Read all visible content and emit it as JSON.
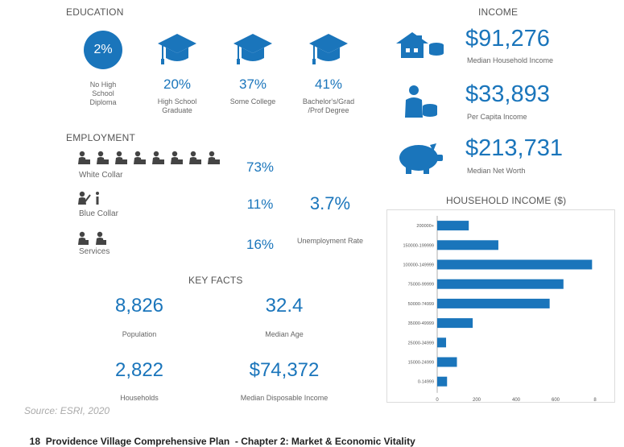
{
  "education": {
    "title": "EDUCATION",
    "items": [
      {
        "value": "2%",
        "label": "No High School Diploma"
      },
      {
        "value": "20%",
        "label": "High School Graduate"
      },
      {
        "value": "37%",
        "label": "Some College"
      },
      {
        "value": "41%",
        "label": "Bachelor's/Grad /Prof Degree"
      }
    ]
  },
  "employment": {
    "title": "EMPLOYMENT",
    "white_collar": {
      "label": "White Collar",
      "value": "73%"
    },
    "blue_collar": {
      "label": "Blue Collar",
      "value": "11%"
    },
    "services": {
      "label": "Services",
      "value": "16%"
    },
    "unemployment": {
      "value": "3.7%",
      "label": "Unemployment Rate"
    }
  },
  "key_facts": {
    "title": "KEY FACTS",
    "population": {
      "value": "8,826",
      "label": "Population"
    },
    "median_age": {
      "value": "32.4",
      "label": "Median Age"
    },
    "households": {
      "value": "2,822",
      "label": "Households"
    },
    "disposable_income": {
      "value": "$74,372",
      "label": "Median Disposable Income"
    }
  },
  "income": {
    "title": "INCOME",
    "median_household": {
      "value": "$91,276",
      "label": "Median Household Income"
    },
    "per_capita": {
      "value": "$33,893",
      "label": "Per Capita Income"
    },
    "net_worth": {
      "value": "$213,731",
      "label": "Median Net Worth"
    }
  },
  "source": "Source: ESRI, 2020",
  "footer": {
    "page": "18",
    "text": "Providence Village Comprehensive Plan  - Chapter 2: Market & Economic Vitality"
  },
  "colors": {
    "accent": "#1a75bb",
    "text": "#555555"
  },
  "chart_data": {
    "type": "bar",
    "orientation": "horizontal",
    "title": "HOUSEHOLD INCOME ($)",
    "categories": [
      "200000+",
      "150000-199999",
      "100000-149999",
      "75000-99999",
      "50000-74999",
      "35000-49999",
      "25000-34999",
      "15000-24999",
      "0-14999"
    ],
    "values": [
      160,
      310,
      785,
      640,
      570,
      180,
      45,
      100,
      50
    ],
    "xticks": [
      "0",
      "200",
      "400",
      "600",
      "8"
    ],
    "xlim": [
      0,
      800
    ]
  }
}
